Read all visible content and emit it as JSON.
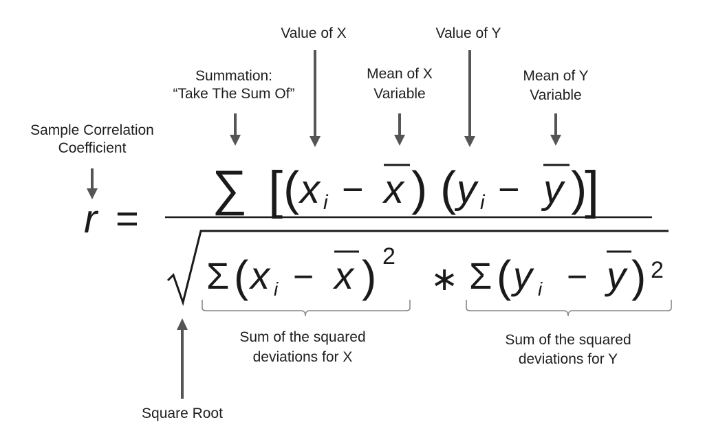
{
  "labels": {
    "sample_corr_line1": "Sample Correlation",
    "sample_corr_line2": "Coefficient",
    "summation_line1": "Summation:",
    "summation_line2": "“Take The Sum Of”",
    "value_x": "Value of X",
    "mean_x_line1": "Mean of X",
    "mean_x_line2": "Variable",
    "value_y": "Value of Y",
    "mean_y_line1": "Mean of Y",
    "mean_y_line2": "Variable",
    "sum_sq_x_line1": "Sum of the squared",
    "sum_sq_x_line2": "deviations for X",
    "sum_sq_y_line1": "Sum of the squared",
    "sum_sq_y_line2": "deviations for Y",
    "square_root": "Square Root"
  },
  "formula": {
    "lhs": "r",
    "equals": "=",
    "sigma": "∑",
    "sigma_small": "Σ",
    "x": "x",
    "y": "y",
    "sub_i": "i",
    "minus": "−",
    "times": "∗",
    "exp2": "2",
    "lparen": "(",
    "rparen": ")",
    "lbracket": "[",
    "rbracket": "]",
    "sqrt": "√"
  },
  "colors": {
    "arrow": "#555555",
    "text": "#1e1e1e",
    "brace": "#888888"
  }
}
